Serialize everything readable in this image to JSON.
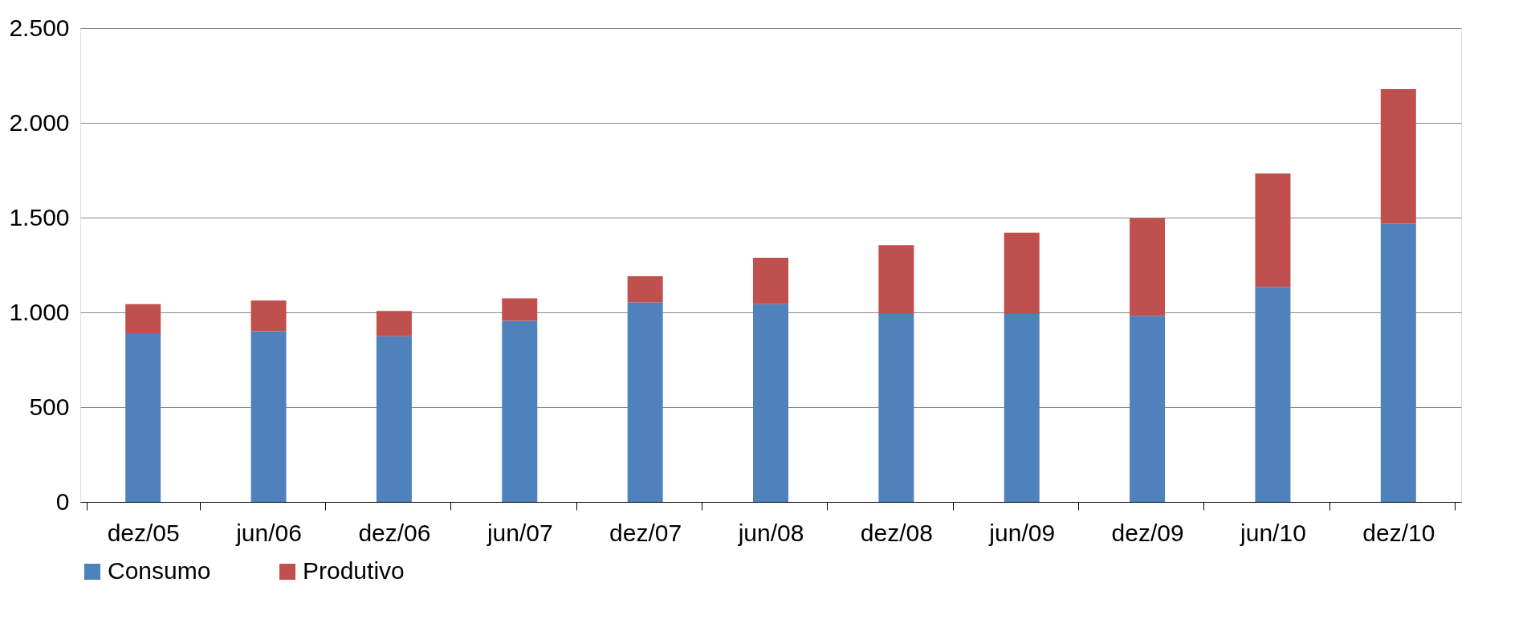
{
  "chart_data": {
    "type": "bar",
    "stacked": true,
    "categories": [
      "dez/05",
      "jun/06",
      "dez/06",
      "jun/07",
      "dez/07",
      "jun/08",
      "dez/08",
      "jun/09",
      "dez/09",
      "jun/10",
      "dez/10"
    ],
    "series": [
      {
        "name": "Consumo",
        "color": "#4f81bd",
        "values": [
          890,
          900,
          874,
          956,
          1053,
          1043,
          992,
          992,
          982,
          1135,
          1467
        ]
      },
      {
        "name": "Produtivo",
        "color": "#c0504d",
        "values": [
          153,
          163,
          133,
          118,
          138,
          245,
          363,
          429,
          516,
          598,
          711
        ]
      }
    ],
    "ylim": [
      0,
      2500
    ],
    "yticks": [
      {
        "value": 0,
        "label": "0"
      },
      {
        "value": 500,
        "label": "500"
      },
      {
        "value": 1000,
        "label": "1.000"
      },
      {
        "value": 1500,
        "label": "1.500"
      },
      {
        "value": 2000,
        "label": "2.000"
      },
      {
        "value": 2500,
        "label": "2.500"
      }
    ],
    "grid": "y",
    "legend": "bottom"
  }
}
